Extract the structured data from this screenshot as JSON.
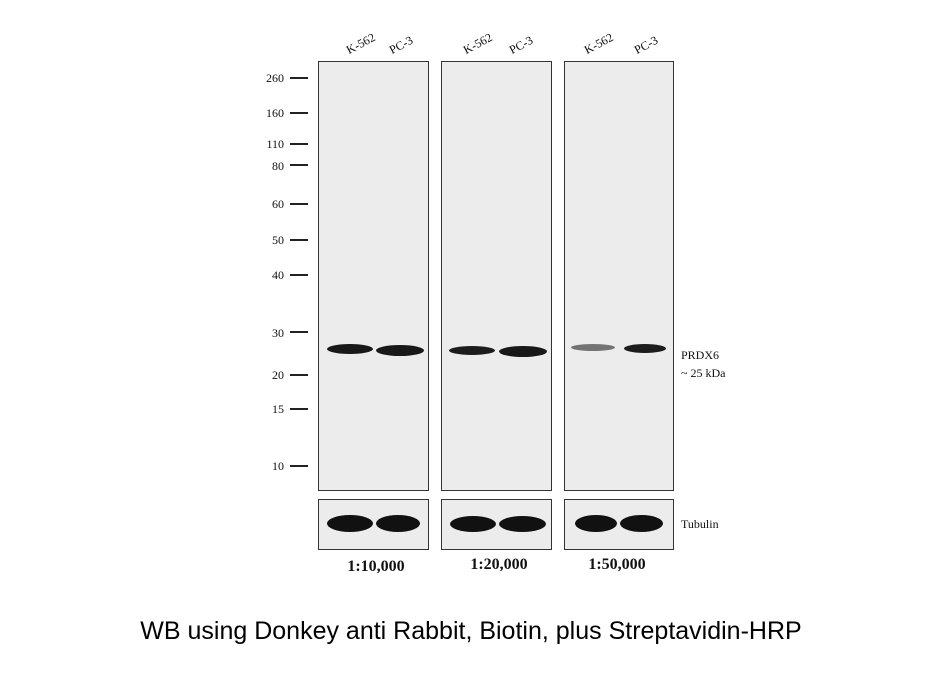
{
  "lane_labels": [
    "K-562",
    "PC-3",
    "K-562",
    "PC-3",
    "K-562",
    "PC-3"
  ],
  "marker_labels": [
    "260",
    "160",
    "110",
    "80",
    "60",
    "50",
    "40",
    "30",
    "20",
    "15",
    "10"
  ],
  "dilutions": [
    "1:10,000",
    "1:20,000",
    "1:50,000"
  ],
  "target": {
    "name": "PRDX6",
    "size": "~ 25 kDa"
  },
  "loading_control": "Tubulin",
  "caption": "WB using Donkey anti Rabbit, Biotin, plus Streptavidin-HRP",
  "colors": {
    "membrane": "#ececec",
    "band": "#111111",
    "border": "#333333"
  }
}
